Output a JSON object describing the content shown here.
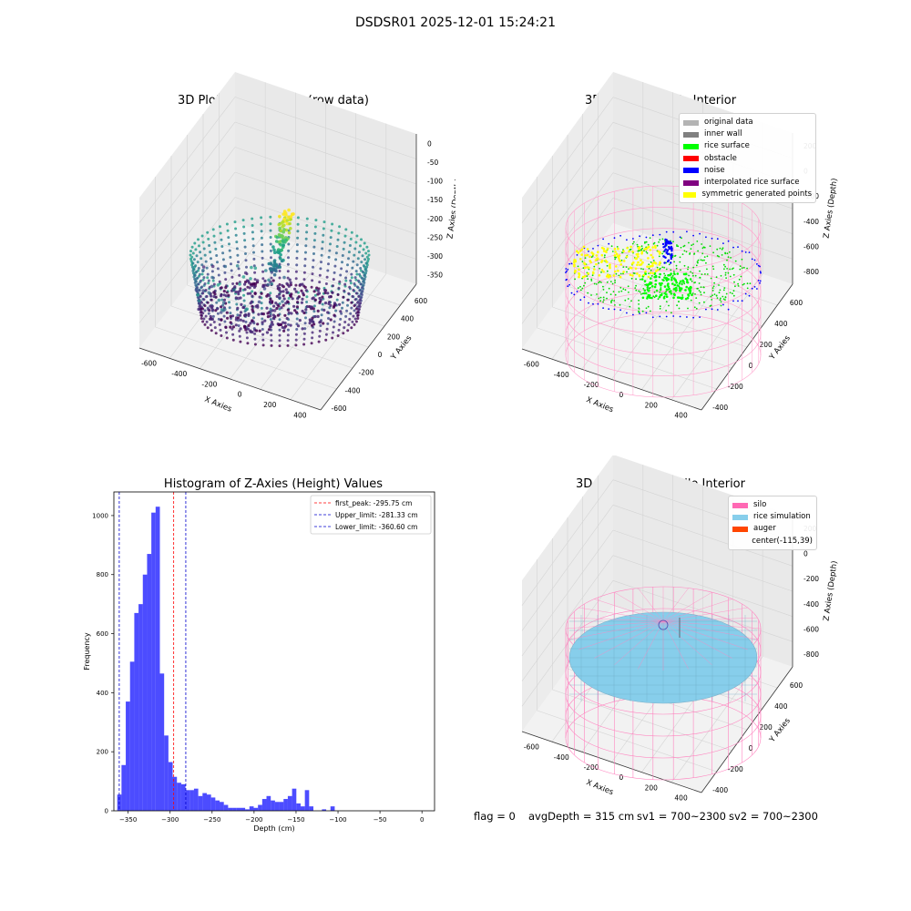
{
  "figure": {
    "suptitle": "DSDSR01 2025-12-01 15:24:21"
  },
  "panels": {
    "raw": {
      "title": "3D Plot of Silo Interior(row data)",
      "xlabel": "X Axies",
      "ylabel": "Y Axies",
      "zlabel": "Z Axies (Depth)",
      "xticks": [
        "-600",
        "-400",
        "-200",
        "0",
        "200",
        "400"
      ],
      "yticks": [
        "-600",
        "-400",
        "-200",
        "0",
        "200",
        "400",
        "600"
      ],
      "zticks": [
        "0",
        "-50",
        "-100",
        "-150",
        "-200",
        "-250",
        "-300",
        "-350"
      ]
    },
    "classify": {
      "title": "3D classify of Silo Interior",
      "xlabel": "X Axies",
      "ylabel": "Y Axies",
      "zlabel": "Z Axies (Depth)",
      "xticks": [
        "-600",
        "-400",
        "-200",
        "0",
        "200",
        "400"
      ],
      "yticks": [
        "-400",
        "-200",
        "0",
        "200",
        "400",
        "600"
      ],
      "zticks": [
        "200",
        "0",
        "-200",
        "-400",
        "-600",
        "-800"
      ],
      "legend": [
        {
          "label": "original data",
          "color": "#b3b3b3"
        },
        {
          "label": "inner wall",
          "color": "#808080"
        },
        {
          "label": "rice surface",
          "color": "#00ff00"
        },
        {
          "label": "obstacle",
          "color": "#ff0000"
        },
        {
          "label": "noise",
          "color": "#0000ff"
        },
        {
          "label": "interpolated rice surface",
          "color": "#800080"
        },
        {
          "label": "symmetric generated points",
          "color": "#ffff00"
        }
      ]
    },
    "simulation": {
      "title": "3D simulation of Silo Interior",
      "xlabel": "X Axies",
      "ylabel": "Y Axies",
      "zlabel": "Z Axies (Depth)",
      "xticks": [
        "-600",
        "-400",
        "-200",
        "0",
        "200",
        "400"
      ],
      "yticks": [
        "-400",
        "-200",
        "0",
        "200",
        "400",
        "600"
      ],
      "zticks": [
        "200",
        "0",
        "-200",
        "-400",
        "-600",
        "-800"
      ],
      "legend": [
        {
          "label": "silo",
          "color": "#ff69b4"
        },
        {
          "label": "rice simulation",
          "color": "#87ceeb"
        },
        {
          "label": "auger",
          "color": "#ff4500"
        },
        {
          "label": "center(-115,39)",
          "color": ""
        }
      ]
    }
  },
  "footer": {
    "flag": "flag = 0",
    "avg": "avgDepth = 315 cm",
    "sv1": "sv1 = 700~2300",
    "sv2": "sv2 = 700~2300"
  },
  "chart_data": [
    {
      "type": "histogram",
      "title": "Histogram of Z-Axies (Height) Values",
      "xlabel": "Depth (cm)",
      "ylabel": "Frequency",
      "xlim": [
        -367,
        15
      ],
      "ylim": [
        0,
        1080
      ],
      "xticks": [
        -350,
        -300,
        -250,
        -200,
        -150,
        -100,
        -50,
        0
      ],
      "yticks": [
        0,
        200,
        400,
        600,
        800,
        1000
      ],
      "bar_color": "#0000ff",
      "bar_alpha": 0.7,
      "bin_start": -363,
      "bin_width": 5.08,
      "counts": [
        55,
        155,
        370,
        505,
        670,
        700,
        800,
        870,
        1010,
        1030,
        465,
        255,
        165,
        115,
        95,
        90,
        70,
        70,
        75,
        50,
        60,
        55,
        45,
        35,
        30,
        20,
        10,
        10,
        10,
        10,
        5,
        15,
        10,
        20,
        40,
        50,
        35,
        30,
        30,
        40,
        50,
        75,
        25,
        15,
        70,
        15,
        0,
        0,
        5,
        0,
        15
      ],
      "vlines": [
        {
          "label": "first_peak: -295.75 cm",
          "x": -295.75,
          "color": "#ff0000"
        },
        {
          "label": "Upper_limit: -281.33 cm",
          "x": -281.33,
          "color": "#0000cc"
        },
        {
          "label": "Lower_limit: -360.60 cm",
          "x": -360.6,
          "color": "#0000cc"
        }
      ]
    }
  ]
}
